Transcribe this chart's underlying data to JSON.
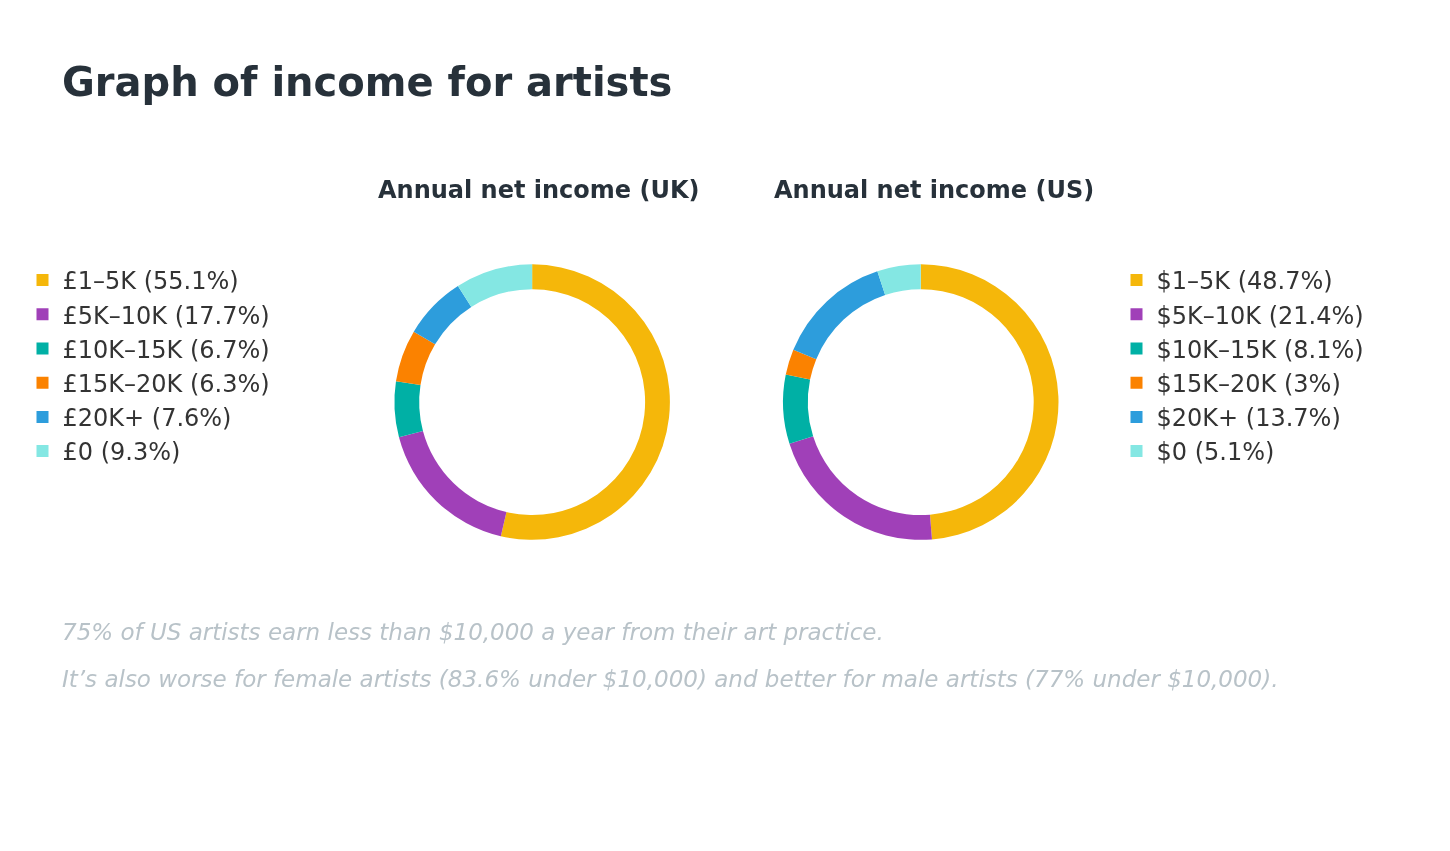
{
  "chart_data": [
    {
      "type": "donut",
      "title": "Graph of income for artists",
      "subtitle": "Annual net income (UK)",
      "legend": "left",
      "categories": [
        "£1–5K (55.1%)",
        "£5K–10K (17.7%)",
        "£10K–15K (6.7%)",
        "£15K–20K (6.3%)",
        "£20K+ (7.6%)",
        "£0 (9.3%)"
      ],
      "values": [
        55.1,
        17.7,
        6.7,
        6.3,
        7.6,
        9.3
      ],
      "colors": [
        "#f5b70a",
        "#a040b8",
        "#00b0a5",
        "#fb8200",
        "#2d9ddc",
        "#84e7e3"
      ]
    },
    {
      "type": "donut",
      "subtitle": "Annual net income (US)",
      "legend": "right",
      "categories": [
        "$1–5K (48.7%)",
        "$5K–10K (21.4%)",
        "$10K–15K (8.1%)",
        "$15K–20K (3%)",
        "$20K+ (13.7%)",
        "$0 (5.1%)"
      ],
      "values": [
        48.7,
        21.4,
        8.1,
        3,
        13.7,
        5.1
      ],
      "colors": [
        "#f5b70a",
        "#a040b8",
        "#00b0a5",
        "#fb8200",
        "#2d9ddc",
        "#84e7e3"
      ],
      "annotations": [
        "75% of US artists earn less than $10,000 a year from their art practice.",
        "It’s also worse for female artists (83.6% under $10,000) and better for male artists (77% under $10,000)."
      ]
    }
  ]
}
